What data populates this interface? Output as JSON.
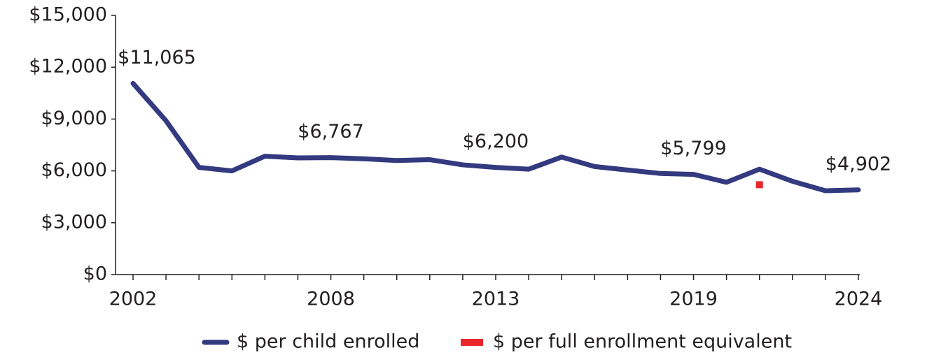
{
  "chart_data": {
    "type": "line",
    "categories": [
      "2002",
      null,
      null,
      null,
      null,
      null,
      "2008",
      null,
      null,
      null,
      null,
      "2013",
      null,
      null,
      null,
      null,
      null,
      "2019",
      null,
      null,
      null,
      null,
      "2024"
    ],
    "series": [
      {
        "name": "$ per child enrolled",
        "color": "#333a80",
        "values": [
          11065,
          8900,
          6200,
          6000,
          6850,
          6750,
          6767,
          6700,
          6600,
          6650,
          6350,
          6200,
          6100,
          6800,
          6250,
          6050,
          5850,
          5799,
          5340,
          6100,
          5400,
          4850,
          4902
        ],
        "value_labels": [
          "$11,065",
          null,
          null,
          null,
          null,
          null,
          "$6,767",
          null,
          null,
          null,
          null,
          "$6,200",
          null,
          null,
          null,
          null,
          null,
          "$5,799",
          null,
          null,
          null,
          null,
          "$4,902"
        ]
      },
      {
        "name": "$ per full enrollment equivalent",
        "color": "#e8262b",
        "values": [
          null,
          null,
          null,
          null,
          null,
          null,
          null,
          null,
          null,
          null,
          null,
          null,
          null,
          null,
          null,
          null,
          null,
          null,
          null,
          5200,
          null,
          null,
          null
        ]
      }
    ],
    "ylim": [
      0,
      15000
    ],
    "yticks": [
      {
        "value": 0,
        "label": "$0"
      },
      {
        "value": 3000,
        "label": "$3,000"
      },
      {
        "value": 6000,
        "label": "$6,000"
      },
      {
        "value": 9000,
        "label": "$9,000"
      },
      {
        "value": 12000,
        "label": "$12,000"
      },
      {
        "value": 15000,
        "label": "$15,000"
      }
    ],
    "grid": false,
    "legend": "bottom"
  }
}
